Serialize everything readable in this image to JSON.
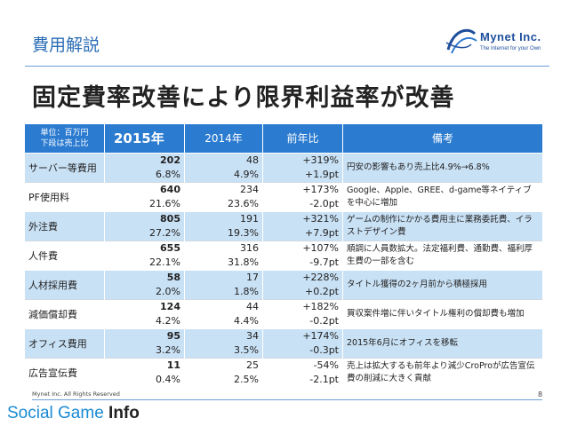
{
  "header": {
    "section_title": "費用解説",
    "main_title": "固定費率改善により限界利益率が改善"
  },
  "logo": {
    "name": "Mynet Inc.",
    "tagline": "The Internet for your Own"
  },
  "table": {
    "unit_label_line1": "単位：百万円",
    "unit_label_line2": "下段は売上比",
    "col_2015": "2015年",
    "col_2014": "2014年",
    "col_yoy": "前年比",
    "col_note": "備考",
    "rows": [
      {
        "label": "サーバー等費用",
        "v2015": "202",
        "p2015": "6.8%",
        "v2014": "48",
        "p2014": "4.9%",
        "yoy": "+319%",
        "yoy_pt": "+1.9pt",
        "note": "円安の影響もあり売上比4.9%→6.8%"
      },
      {
        "label": "PF使用料",
        "v2015": "640",
        "p2015": "21.6%",
        "v2014": "234",
        "p2014": "23.6%",
        "yoy": "+173%",
        "yoy_pt": "-2.0pt",
        "note": "Google、Apple、GREE、d-game等ネイティブを中心に増加"
      },
      {
        "label": "外注費",
        "v2015": "805",
        "p2015": "27.2%",
        "v2014": "191",
        "p2014": "19.3%",
        "yoy": "+321%",
        "yoy_pt": "+7.9pt",
        "note": "ゲームの制作にかかる費用主に業務委託費、イラストデザイン費"
      },
      {
        "label": "人件費",
        "v2015": "655",
        "p2015": "22.1%",
        "v2014": "316",
        "p2014": "31.8%",
        "yoy": "+107%",
        "yoy_pt": "-9.7pt",
        "note": "順調に人員数拡大。法定福利費、通勤費、福利厚生費の一部を含む"
      },
      {
        "label": "人材採用費",
        "v2015": "58",
        "p2015": "2.0%",
        "v2014": "17",
        "p2014": "1.8%",
        "yoy": "+228%",
        "yoy_pt": "+0.2pt",
        "note": "タイトル獲得の2ヶ月前から積極採用"
      },
      {
        "label": "減価償却費",
        "v2015": "124",
        "p2015": "4.2%",
        "v2014": "44",
        "p2014": "4.4%",
        "yoy": "+182%",
        "yoy_pt": "-0.2pt",
        "note": "買収案件増に伴いタイトル権利の償却費も増加"
      },
      {
        "label": "オフィス費用",
        "v2015": "95",
        "p2015": "3.2%",
        "v2014": "34",
        "p2014": "3.5%",
        "yoy": "+174%",
        "yoy_pt": "-0.3pt",
        "note": "2015年6月にオフィスを移転"
      },
      {
        "label": "広告宣伝費",
        "v2015": "11",
        "p2015": "0.4%",
        "v2014": "25",
        "p2014": "2.5%",
        "yoy": "-54%",
        "yoy_pt": "-2.1pt",
        "note": "売上は拡大するも前年より減少CroProが広告宣伝費の削減に大きく貢献"
      }
    ]
  },
  "footer": {
    "copyright": "Mynet Inc. All Rights Reserved",
    "page_number": "8",
    "watermark_part1": "Social Game ",
    "watermark_part2": "Info"
  }
}
